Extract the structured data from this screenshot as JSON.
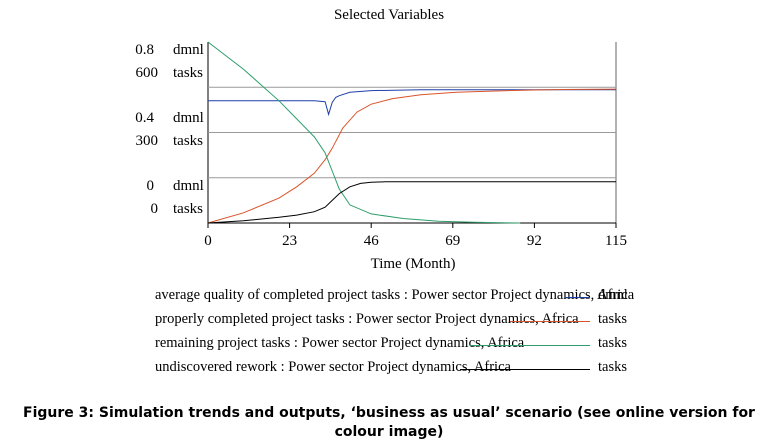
{
  "chart_data": {
    "type": "line",
    "title": "Selected Variables",
    "xlabel": "Time (Month)",
    "xlim": [
      0,
      115
    ],
    "x_ticks": [
      "0",
      "23",
      "46",
      "69",
      "92",
      "115"
    ],
    "left_axis_labels": [
      {
        "value": "0.8",
        "unit": "dmnl"
      },
      {
        "value": "600",
        "unit": "tasks"
      },
      {
        "value": "0.4",
        "unit": "dmnl"
      },
      {
        "value": "300",
        "unit": "tasks"
      },
      {
        "value": "0",
        "unit": "dmnl"
      },
      {
        "value": "0",
        "unit": "tasks"
      }
    ],
    "series": [
      {
        "name": "average quality of completed project tasks : Power sector Project dynamics, Africa",
        "unit": "dmnl",
        "color": "#1f3fa8",
        "scale": [
          0,
          0.8
        ],
        "x": [
          0,
          10,
          20,
          30,
          33,
          34,
          35,
          36,
          37,
          40,
          46,
          60,
          80,
          100,
          115
        ],
        "values": [
          0.72,
          0.72,
          0.72,
          0.72,
          0.715,
          0.64,
          0.71,
          0.74,
          0.75,
          0.77,
          0.78,
          0.785,
          0.785,
          0.785,
          0.785
        ]
      },
      {
        "name": "properly completed project tasks : Power sector Project dynamics, Africa",
        "unit": "tasks",
        "color": "#d9542b",
        "scale": [
          0,
          600
        ],
        "x": [
          0,
          10,
          20,
          25,
          30,
          33,
          35,
          38,
          42,
          46,
          52,
          60,
          70,
          80,
          92,
          100,
          115
        ],
        "values": [
          0,
          45,
          110,
          160,
          220,
          280,
          330,
          420,
          490,
          525,
          550,
          567,
          578,
          583,
          588,
          590,
          592
        ]
      },
      {
        "name": "remaining project tasks : Power sector Project dynamics, Africa",
        "unit": "tasks",
        "color": "#2e9e6a",
        "scale": [
          0,
          600
        ],
        "x": [
          0,
          5,
          10,
          15,
          20,
          25,
          30,
          33,
          35,
          37,
          40,
          46,
          55,
          65,
          75,
          88
        ],
        "values": [
          800,
          740,
          680,
          610,
          540,
          460,
          380,
          310,
          230,
          150,
          80,
          40,
          20,
          8,
          3,
          0
        ]
      },
      {
        "name": "undiscovered rework : Power sector Project dynamics, Africa",
        "unit": "tasks",
        "color": "#000000",
        "scale": [
          0,
          600
        ],
        "x": [
          0,
          10,
          20,
          25,
          30,
          33,
          35,
          37,
          40,
          43,
          46,
          50,
          60,
          80,
          100,
          115
        ],
        "values": [
          0,
          10,
          25,
          35,
          50,
          70,
          100,
          130,
          160,
          175,
          180,
          182,
          182,
          182,
          182,
          182
        ]
      }
    ]
  },
  "caption": "Figure 3: Simulation trends and outputs, ‘business as usual’ scenario (see online version for colour image)"
}
